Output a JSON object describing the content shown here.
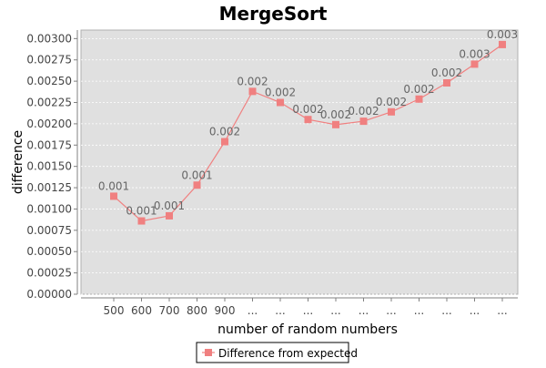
{
  "chart_data": {
    "type": "line",
    "title": "MergeSort",
    "xlabel": "number of random numbers",
    "ylabel": "difference",
    "categories": [
      "500",
      "600",
      "700",
      "800",
      "900",
      "...",
      "...",
      "...",
      "...",
      "...",
      "...",
      "...",
      "...",
      "...",
      "..."
    ],
    "series": [
      {
        "name": "Difference from expected",
        "values": [
          0.00115,
          0.00086,
          0.00092,
          0.00128,
          0.00179,
          0.00238,
          0.00225,
          0.00205,
          0.00199,
          0.00203,
          0.00214,
          0.00229,
          0.00248,
          0.0027,
          0.00293
        ],
        "labels": [
          "0.001",
          "0.001",
          "0.001",
          "0.001",
          "0.002",
          "0.002",
          "0.002",
          "0.002",
          "0.002",
          "0.002",
          "0.002",
          "0.002",
          "0.002",
          "0.003",
          "0.003"
        ],
        "color": "#f08080"
      }
    ],
    "ylim": [
      0,
      0.0031
    ],
    "yticks": [
      "0.00000",
      "0.00025",
      "0.00050",
      "0.00075",
      "0.00100",
      "0.00125",
      "0.00150",
      "0.00175",
      "0.00200",
      "0.00225",
      "0.00250",
      "0.00275",
      "0.00300"
    ],
    "grid": true,
    "legend_position": "bottom-center"
  },
  "colors": {
    "plot_background": "#e0e0e0",
    "gridline": "#ffffff",
    "axis": "#808080",
    "tick_text": "#444444",
    "point_label_text": "#666666",
    "line": "#f08080",
    "marker": "#f08080"
  }
}
